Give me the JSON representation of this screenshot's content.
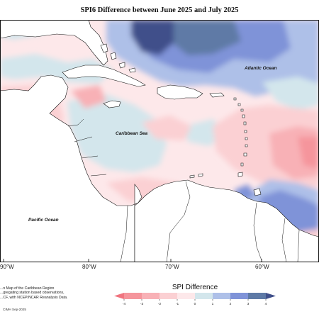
{
  "map": {
    "title": "SPI6 Difference between June 2025 and July 2025",
    "region": "Caribbean",
    "ocean_labels": {
      "atlantic": "Atlantic Ocean",
      "caribbean": "Caribbean Sea",
      "pacific": "Pacific Ocean"
    },
    "longitude_labels": [
      "90°W",
      "80°W",
      "70°W",
      "60°W"
    ],
    "notes": {
      "line1": "...n Map of the Caribbean Region",
      "line2": "...gregating station based observations,",
      "line3": "...CF, with NCEP/NCAR Reanalysis Data.",
      "credit": "CIMH Sep-2025"
    }
  },
  "legend": {
    "title": "SPI Difference",
    "ticks": [
      "-4",
      "-3",
      "-2",
      "-1",
      "0",
      "1",
      "2",
      "3",
      "4"
    ],
    "colors": {
      "lt_neg4": "#f0747f",
      "neg4_neg3": "#f5959c",
      "neg3_neg2": "#f8b1b6",
      "neg2_neg1": "#fbd0d3",
      "neg1_0": "#fde8ea",
      "zero_1": "#d3e6ec",
      "one_2": "#aec0e8",
      "two_3": "#7f93d8",
      "three_4": "#5e7aa6",
      "gt_4": "#3f4f8a"
    }
  }
}
